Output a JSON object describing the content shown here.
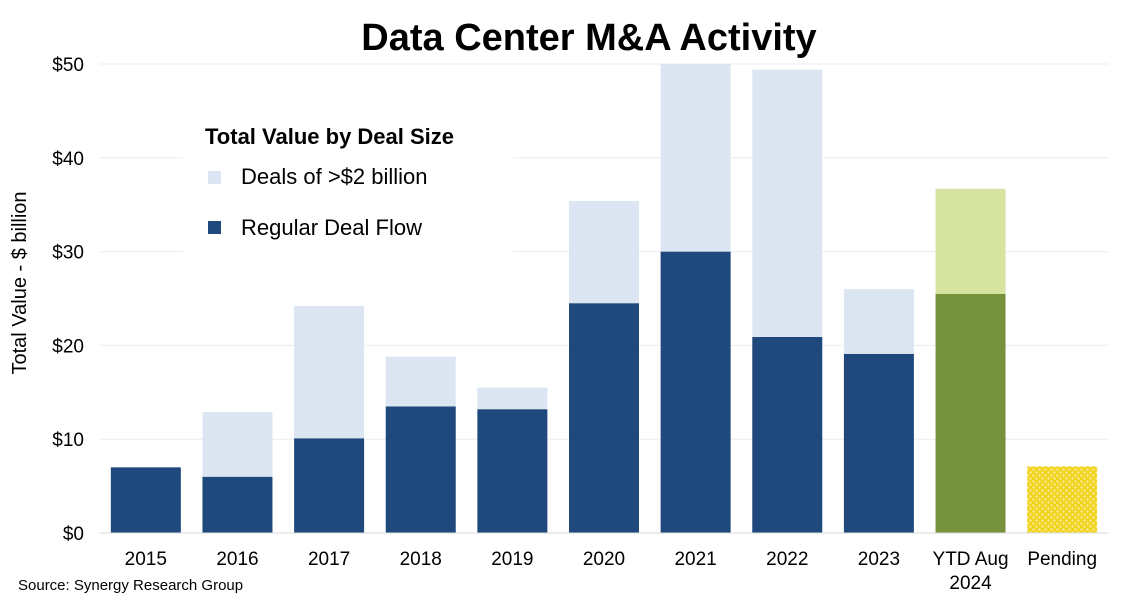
{
  "chart_data": {
    "type": "bar",
    "stacked": true,
    "title": "Data Center M&A Activity",
    "ylabel": "Total Value - $ billion",
    "ylim": [
      0,
      50
    ],
    "yticks": [
      "$0",
      "$10",
      "$20",
      "$30",
      "$40",
      "$50"
    ],
    "grid": true,
    "categories": [
      "2015",
      "2016",
      "2017",
      "2018",
      "2019",
      "2020",
      "2021",
      "2022",
      "2023",
      "YTD Aug 2024",
      "Pending"
    ],
    "series": [
      {
        "name": "Regular Deal Flow",
        "values": [
          7.0,
          6.0,
          10.1,
          13.5,
          13.2,
          24.5,
          30.0,
          20.9,
          19.1,
          25.5,
          7.1
        ],
        "color": "#1f497d"
      },
      {
        "name": "Deals of >$2 billion",
        "values": [
          0,
          6.9,
          14.1,
          5.3,
          2.3,
          10.9,
          20.0,
          28.5,
          6.9,
          11.2,
          0
        ],
        "color": "#dce6f2"
      }
    ],
    "bar_colors_override": {
      "YTD Aug 2024": {
        "Regular Deal Flow": "#76923c",
        "Deals of >$2 billion": "#d7e4a0"
      },
      "Pending": {
        "Regular Deal Flow": "#f2d41f"
      }
    },
    "legend": {
      "title": "Total Value by Deal Size",
      "placement": "top-left",
      "items": [
        {
          "label": "Deals of >$2 billion",
          "color": "#dce6f2"
        },
        {
          "label": "Regular Deal Flow",
          "color": "#1f497d"
        }
      ]
    }
  },
  "footer": {
    "source": "Source: Synergy Research Group"
  }
}
